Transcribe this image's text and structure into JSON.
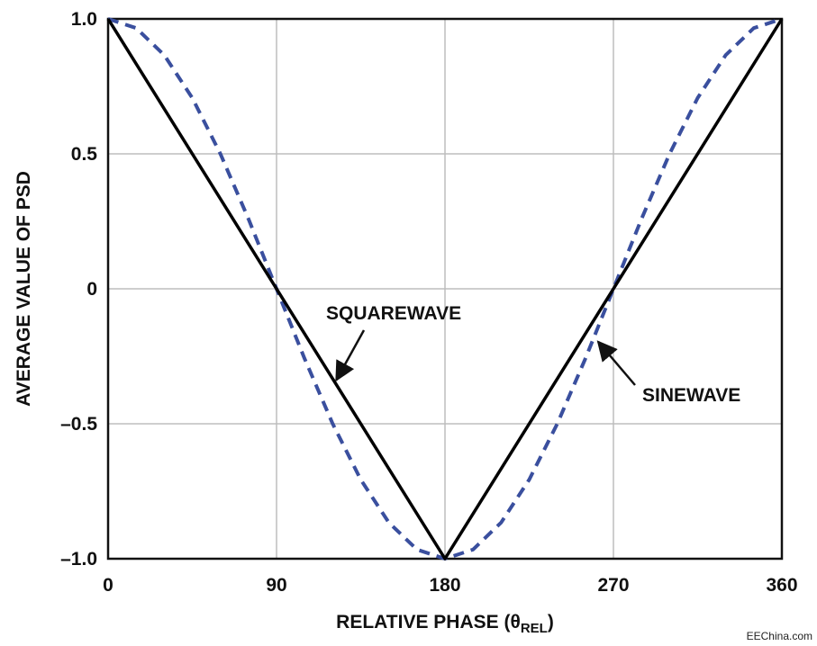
{
  "chart_data": {
    "type": "line",
    "title": "",
    "xlabel": "RELATIVE PHASE (θ",
    "xlabel_sub": "REL",
    "xlabel_close": ")",
    "ylabel": "AVERAGE VALUE OF PSD",
    "xlim": [
      0,
      360
    ],
    "ylim": [
      -1,
      1
    ],
    "grid": true,
    "x_ticks": [
      0,
      90,
      180,
      270,
      360
    ],
    "x_tick_labels": [
      "0",
      "90",
      "180",
      "270",
      "360"
    ],
    "y_ticks": [
      1,
      0.5,
      0,
      -0.5,
      -1
    ],
    "y_tick_labels": [
      "1.0",
      "0.5",
      "0",
      "–0.5",
      "–1.0"
    ],
    "series": [
      {
        "name": "SQUAREWAVE",
        "color": "#000000",
        "style": "solid",
        "x": [
          0,
          180,
          360
        ],
        "y": [
          1,
          -1,
          1
        ]
      },
      {
        "name": "SINEWAVE",
        "color": "#3a4f9e",
        "style": "dashed",
        "x": [
          0,
          15,
          30,
          45,
          60,
          75,
          90,
          105,
          120,
          135,
          150,
          165,
          180,
          195,
          210,
          225,
          240,
          255,
          270,
          285,
          300,
          315,
          330,
          345,
          360
        ],
        "y": [
          1.0,
          0.966,
          0.866,
          0.707,
          0.5,
          0.259,
          0.0,
          -0.259,
          -0.5,
          -0.707,
          -0.866,
          -0.966,
          -1.0,
          -0.966,
          -0.866,
          -0.707,
          -0.5,
          -0.259,
          0.0,
          0.259,
          0.5,
          0.707,
          0.866,
          0.966,
          1.0
        ]
      }
    ],
    "annotations": [
      {
        "text": "SQUAREWAVE",
        "target_series": "SQUAREWAVE"
      },
      {
        "text": "SINEWAVE",
        "target_series": "SINEWAVE"
      }
    ]
  },
  "watermark": "EEChina.com"
}
